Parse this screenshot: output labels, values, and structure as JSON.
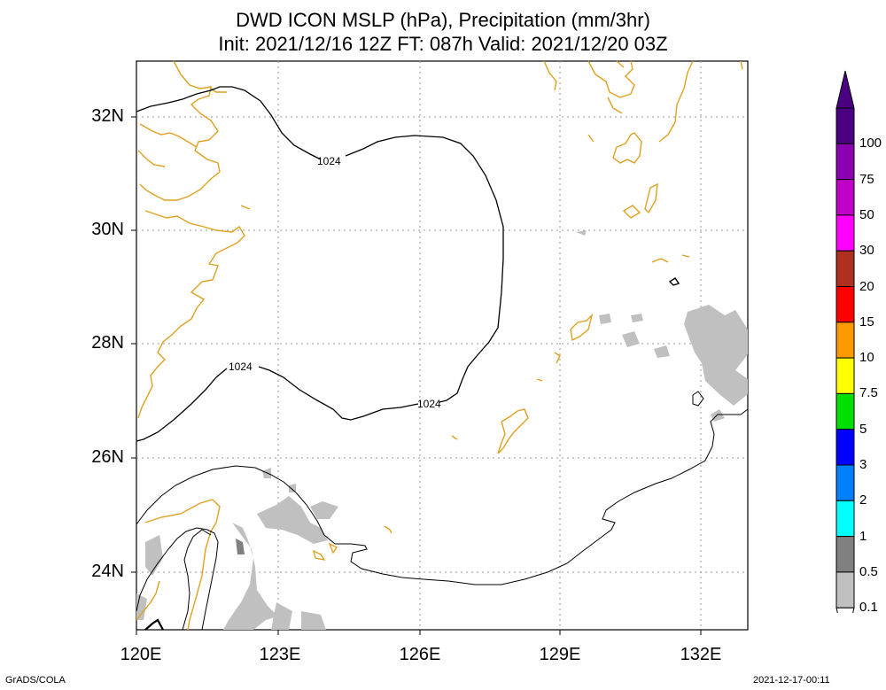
{
  "title": {
    "line1": "DWD ICON MSLP (hPa), Precipitation (mm/3hr)",
    "line2": "Init: 2021/12/16 12Z  FT: 087h  Valid: 2021/12/20 03Z"
  },
  "map": {
    "lon_range": [
      120,
      133
    ],
    "lat_range": [
      23,
      33
    ],
    "lat_labels": [
      "32N",
      "30N",
      "28N",
      "26N",
      "24N"
    ],
    "lon_labels": [
      "120E",
      "123E",
      "126E",
      "129E",
      "132E"
    ],
    "isobar_labels": [
      "1024",
      "1024",
      "1024"
    ],
    "colors": {
      "coastline": "#e0a020",
      "isobar": "#000000",
      "grid": "#999999",
      "precip": "#c0c0c0"
    }
  },
  "colorbar": {
    "labels": [
      "100",
      "75",
      "50",
      "30",
      "20",
      "15",
      "10",
      "7.5",
      "5",
      "3",
      "2",
      "1",
      "0.5",
      "0.1"
    ],
    "colors": [
      "#4b0082",
      "#8b00b0",
      "#c000c8",
      "#ff00ff",
      "#b03020",
      "#ff0000",
      "#ff9900",
      "#ffff00",
      "#00e000",
      "#0000ff",
      "#0080ff",
      "#00ffff",
      "#808080",
      "#c0c0c0"
    ]
  },
  "footer": {
    "left": "GrADS/COLA",
    "right": "2021-12-17-00:11"
  }
}
